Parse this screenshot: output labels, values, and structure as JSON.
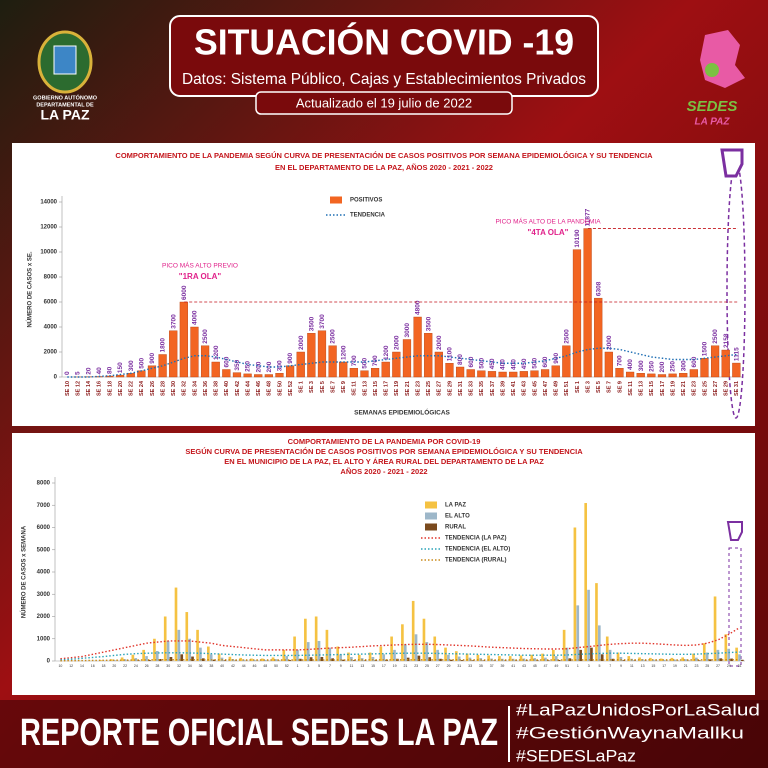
{
  "header": {
    "title": "SITUACIÓN COVID -19",
    "subtitle": "Datos: Sistema Público, Cajas y Establecimientos Privados",
    "updated": "Actualizado el  19  julio de 2022",
    "left_logo": [
      "GOBIERNO AUTÓNOMO",
      "DEPARTAMENTAL DE",
      "LA PAZ"
    ],
    "right_logo": [
      "SEDES",
      "LA PAZ"
    ]
  },
  "footer": {
    "title": "REPORTE OFICIAL SEDES LA PAZ",
    "hashtags": [
      "#LaPazUnidosPorLaSalud",
      "#GestiónWaynaMallku",
      "#SEDESLaPaz"
    ]
  },
  "chart_data": [
    {
      "type": "bar",
      "title": [
        "COMPORTAMIENTO DE LA PANDEMIA SEGÚN CURVA DE PRESENTACIÓN DE CASOS POSITIVOS POR SEMANA EPIDEMIOLÓGICA Y SU TENDENCIA",
        "EN EL DEPARTAMENTO DE LA PAZ, AÑOS 2020 - 2021 - 2022"
      ],
      "y_label": "NÚMERO DE CASOS x SE.",
      "x_label": "SEMANAS EPIDEMIOLÓGICAS",
      "annotations": [
        [
          "PICO MÁS ALTO PREVIO",
          "\"1RA OLA\""
        ],
        [
          "PICO MÁS ALTO DE LA PANDEMIA",
          "\"4TA OLA\""
        ]
      ],
      "show_values": true,
      "ylim": [
        0,
        14000
      ],
      "yticks": [
        0,
        2000,
        4000,
        6000,
        8000,
        10000,
        12000,
        14000
      ],
      "categories": [
        "SE 10",
        "SE 12",
        "SE 14",
        "SE 16",
        "SE 18",
        "SE 20",
        "SE 22",
        "SE 24",
        "SE 26",
        "SE 28",
        "SE 30",
        "SE 32",
        "SE 34",
        "SE 36",
        "SE 38",
        "SE 40",
        "SE 42",
        "SE 44",
        "SE 46",
        "SE 48",
        "SE 50",
        "SE 52",
        "SE 1",
        "SE 3",
        "SE 5",
        "SE 7",
        "SE 9",
        "SE 11",
        "SE 13",
        "SE 15",
        "SE 17",
        "SE 19",
        "SE 21",
        "SE 23",
        "SE 25",
        "SE 27",
        "SE 29",
        "SE 31",
        "SE 33",
        "SE 35",
        "SE 37",
        "SE 39",
        "SE 41",
        "SE 43",
        "SE 45",
        "SE 47",
        "SE 49",
        "SE 51",
        "SE 1",
        "SE 3",
        "SE 5",
        "SE 7",
        "SE 9",
        "SE 11",
        "SE 13",
        "SE 15",
        "SE 17",
        "SE 19",
        "SE 21",
        "SE 23",
        "SE 25",
        "SE 27",
        "SE 29",
        "SE 31"
      ],
      "series": [
        {
          "name": "POSITIVOS",
          "style": "bar",
          "color": "#f26522",
          "values": [
            0,
            5,
            20,
            40,
            80,
            150,
            300,
            500,
            900,
            1800,
            3700,
            6000,
            4000,
            2500,
            1200,
            600,
            350,
            250,
            200,
            200,
            300,
            900,
            2000,
            3500,
            3700,
            2500,
            1200,
            700,
            500,
            700,
            1200,
            2000,
            3000,
            4800,
            3500,
            2000,
            1100,
            800,
            600,
            500,
            450,
            400,
            400,
            450,
            500,
            600,
            900,
            2500,
            10190,
            11877,
            6308,
            2000,
            700,
            400,
            300,
            250,
            200,
            250,
            300,
            600,
            1500,
            2500,
            2158,
            1115
          ]
        },
        {
          "name": "TENDENCIA",
          "style": "line",
          "color": "#1f6fb4",
          "values": [
            0,
            0,
            0,
            50,
            100,
            200,
            300,
            500,
            700,
            900,
            1200,
            1500,
            1700,
            1700,
            1600,
            1400,
            1200,
            1000,
            900,
            800,
            800,
            900,
            1000,
            1100,
            1200,
            1200,
            1200,
            1200,
            1200,
            1300,
            1400,
            1500,
            1600,
            1700,
            1700,
            1700,
            1600,
            1500,
            1400,
            1300,
            1200,
            1100,
            1100,
            1100,
            1200,
            1300,
            1500,
            1700,
            2000,
            2200,
            2300,
            2300,
            2200,
            2000,
            1800,
            1600,
            1500,
            1400,
            1400,
            1400,
            1500,
            1600,
            1700,
            1800
          ]
        }
      ]
    },
    {
      "type": "bar",
      "title": [
        "COMPORTAMIENTO DE LA PANDEMIA POR COVID-19",
        "SEGÚN CURVA DE PRESENTACIÓN DE CASOS POSITIVOS POR SEMANA EPIDEMIOLÓGICA Y SU TENDENCIA",
        "EN EL  MUNICIPIO DE LA PAZ, EL ALTO Y ÁREA RURAL DEL DEPARTAMENTO DE LA PAZ",
        "AÑOS 2020 - 2021 - 2022"
      ],
      "y_label": "NÚMERO DE CASOS x SEMANA",
      "show_values": false,
      "ylim": [
        0,
        8000
      ],
      "yticks": [
        0,
        1000,
        2000,
        3000,
        4000,
        5000,
        6000,
        7000,
        8000
      ],
      "categories": [
        "10",
        "12",
        "14",
        "16",
        "18",
        "20",
        "22",
        "24",
        "26",
        "28",
        "30",
        "32",
        "34",
        "36",
        "38",
        "40",
        "42",
        "44",
        "46",
        "48",
        "50",
        "52",
        "1",
        "3",
        "5",
        "7",
        "9",
        "11",
        "13",
        "15",
        "17",
        "19",
        "21",
        "23",
        "25",
        "27",
        "29",
        "31",
        "33",
        "35",
        "37",
        "39",
        "41",
        "43",
        "45",
        "47",
        "49",
        "51",
        "1",
        "3",
        "5",
        "7",
        "9",
        "11",
        "13",
        "15",
        "17",
        "19",
        "21",
        "23",
        "25",
        "27",
        "29",
        "31"
      ],
      "series": [
        {
          "name": "LA PAZ",
          "style": "bar",
          "color": "#f5c242",
          "values": [
            0,
            0,
            10,
            20,
            40,
            80,
            160,
            280,
            500,
            1000,
            2000,
            3300,
            2200,
            1400,
            650,
            330,
            190,
            140,
            110,
            110,
            160,
            500,
            1100,
            1900,
            2000,
            1400,
            650,
            380,
            280,
            380,
            650,
            1100,
            1650,
            2700,
            1900,
            1100,
            600,
            440,
            330,
            280,
            250,
            220,
            220,
            250,
            280,
            330,
            500,
            1400,
            6000,
            7100,
            3500,
            1100,
            380,
            220,
            160,
            140,
            110,
            140,
            160,
            330,
            800,
            2900,
            1200,
            600
          ]
        },
        {
          "name": "EL ALTO",
          "style": "bar",
          "color": "#9db7c9",
          "values": [
            0,
            0,
            5,
            10,
            20,
            40,
            80,
            130,
            220,
            450,
            900,
            1400,
            1000,
            600,
            300,
            150,
            90,
            60,
            50,
            50,
            80,
            220,
            500,
            850,
            900,
            600,
            300,
            180,
            130,
            180,
            300,
            500,
            750,
            1200,
            850,
            500,
            280,
            200,
            150,
            130,
            110,
            100,
            100,
            110,
            130,
            150,
            220,
            600,
            2500,
            3200,
            1600,
            500,
            180,
            100,
            80,
            60,
            50,
            60,
            80,
            150,
            380,
            500,
            550,
            300
          ]
        },
        {
          "name": "RURAL",
          "style": "bar",
          "color": "#7a4a1e",
          "values": [
            0,
            0,
            0,
            2,
            4,
            8,
            15,
            25,
            45,
            90,
            180,
            300,
            200,
            120,
            60,
            30,
            18,
            12,
            10,
            10,
            15,
            45,
            100,
            170,
            180,
            120,
            60,
            35,
            25,
            35,
            60,
            100,
            150,
            240,
            170,
            100,
            55,
            40,
            30,
            25,
            22,
            20,
            20,
            22,
            25,
            30,
            45,
            120,
            500,
            600,
            300,
            100,
            35,
            20,
            15,
            12,
            10,
            12,
            15,
            30,
            75,
            120,
            110,
            55
          ]
        },
        {
          "name": "TENDENCIA (LA PAZ)",
          "style": "line",
          "color": "#e0352b",
          "values": [
            100,
            150,
            200,
            300,
            400,
            500,
            600,
            700,
            800,
            850,
            900,
            900,
            900,
            850,
            800,
            700,
            650,
            600,
            550,
            500,
            500,
            500,
            500,
            520,
            550,
            580,
            600,
            620,
            650,
            680,
            700,
            720,
            740,
            750,
            750,
            740,
            720,
            700,
            680,
            650,
            620,
            600,
            580,
            560,
            550,
            540,
            540,
            550,
            600,
            650,
            700,
            750,
            780,
            800,
            800,
            780,
            750,
            720,
            700,
            720,
            800,
            950,
            1200,
            1500
          ]
        },
        {
          "name": "TENDENCIA (EL ALTO)",
          "style": "line",
          "color": "#2aa3b8",
          "values": [
            50,
            80,
            120,
            160,
            200,
            250,
            300,
            330,
            350,
            360,
            370,
            370,
            360,
            350,
            330,
            310,
            290,
            270,
            260,
            250,
            250,
            250,
            250,
            260,
            270,
            280,
            290,
            300,
            310,
            320,
            330,
            340,
            350,
            350,
            350,
            340,
            330,
            320,
            310,
            300,
            290,
            280,
            270,
            260,
            260,
            260,
            260,
            270,
            300,
            320,
            340,
            350,
            350,
            340,
            330,
            320,
            310,
            300,
            300,
            310,
            330,
            350,
            380,
            400
          ]
        },
        {
          "name": "TENDENCIA (RURAL)",
          "style": "line",
          "color": "#c98a1a",
          "values": [
            10,
            15,
            20,
            25,
            30,
            35,
            40,
            45,
            50,
            55,
            60,
            60,
            60,
            58,
            55,
            52,
            50,
            48,
            46,
            45,
            45,
            45,
            45,
            46,
            47,
            48,
            49,
            50,
            51,
            52,
            53,
            54,
            55,
            55,
            55,
            54,
            53,
            52,
            51,
            50,
            49,
            48,
            47,
            46,
            46,
            46,
            46,
            47,
            50,
            52,
            54,
            55,
            55,
            54,
            53,
            52,
            51,
            50,
            50,
            51,
            52,
            54,
            56,
            58
          ]
        }
      ]
    }
  ]
}
